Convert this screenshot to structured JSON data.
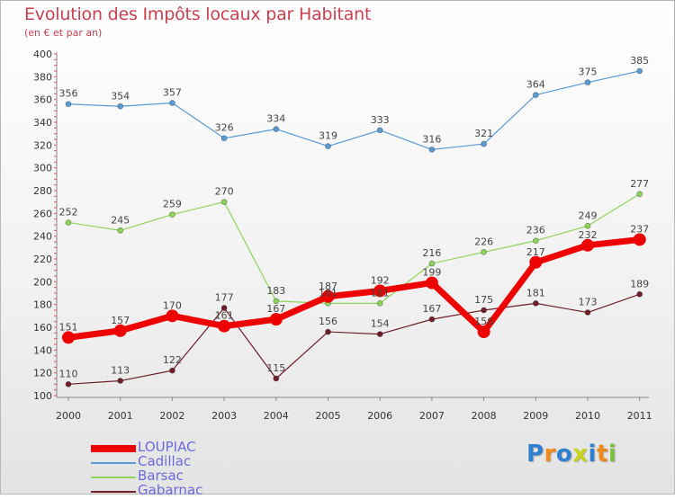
{
  "chart_data": {
    "type": "line",
    "title": "Evolution des Impôts locaux par Habitant",
    "subtitle": "(en € et par an)",
    "xlabel": "",
    "ylabel": "",
    "categories": [
      "2000",
      "2001",
      "2002",
      "2003",
      "2004",
      "2005",
      "2006",
      "2007",
      "2008",
      "2009",
      "2010",
      "2011"
    ],
    "ylim": [
      100,
      400
    ],
    "yticks": [
      100,
      120,
      140,
      160,
      180,
      200,
      220,
      240,
      260,
      280,
      300,
      320,
      340,
      360,
      380,
      400
    ],
    "grid": false,
    "legend_position": "bottom-left",
    "series": [
      {
        "name": "LOUPIAC",
        "color": "#ee0000",
        "values": [
          151,
          157,
          170,
          161,
          167,
          187,
          192,
          199,
          156,
          217,
          232,
          237
        ]
      },
      {
        "name": "Cadillac",
        "color": "#5b9bd5",
        "values": [
          356,
          354,
          357,
          326,
          334,
          319,
          333,
          316,
          321,
          364,
          375,
          385
        ]
      },
      {
        "name": "Barsac",
        "color": "#8fd45a",
        "values": [
          252,
          245,
          259,
          270,
          183,
          181,
          181,
          216,
          226,
          236,
          249,
          277
        ]
      },
      {
        "name": "Gabarnac",
        "color": "#6e1f27",
        "values": [
          110,
          113,
          122,
          177,
          115,
          156,
          154,
          167,
          175,
          181,
          173,
          189
        ]
      }
    ]
  },
  "logo": {
    "letters": [
      {
        "ch": "P",
        "color": "#2f7fcf"
      },
      {
        "ch": "r",
        "color": "#f08a1c"
      },
      {
        "ch": "o",
        "color": "#2f7fcf"
      },
      {
        "ch": "x",
        "color": "#c8d41a"
      },
      {
        "ch": "i",
        "color": "#2f7fcf"
      },
      {
        "ch": "t",
        "color": "#f08a1c"
      },
      {
        "ch": "i",
        "color": "#7bc242"
      }
    ]
  }
}
